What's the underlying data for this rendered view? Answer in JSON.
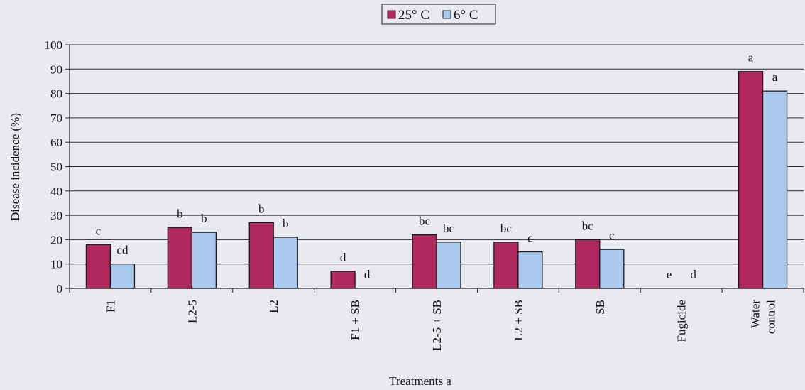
{
  "chart_data": {
    "type": "bar",
    "categories": [
      [
        "F1"
      ],
      [
        "L2-5"
      ],
      [
        "L2"
      ],
      [
        "F1 + SB"
      ],
      [
        "L2-5 + SB"
      ],
      [
        "L2 + SB"
      ],
      [
        "SB"
      ],
      [
        "Fugicide"
      ],
      [
        "Water",
        "control"
      ]
    ],
    "series": [
      {
        "name": "25° C",
        "color": "#b0285e",
        "values": [
          18,
          25,
          27,
          7,
          22,
          19,
          20,
          0,
          89
        ],
        "labels": [
          "c",
          "b",
          "b",
          "d",
          "bc",
          "bc",
          "bc",
          "e",
          "a"
        ]
      },
      {
        "name": "6° C",
        "color": "#a9c9ef",
        "values": [
          10,
          23,
          21,
          0,
          19,
          15,
          16,
          0,
          81
        ],
        "labels": [
          "cd",
          "b",
          "b",
          "d",
          "bc",
          "c",
          "c",
          "d",
          "a"
        ]
      }
    ],
    "title": "",
    "xlabel": "Treatments a",
    "ylabel": "Disease incidence (%)",
    "ylim": [
      0,
      100
    ],
    "yticks": [
      0,
      10,
      20,
      30,
      40,
      50,
      60,
      70,
      80,
      90,
      100
    ],
    "grid": true,
    "legend_position": "top-center"
  }
}
